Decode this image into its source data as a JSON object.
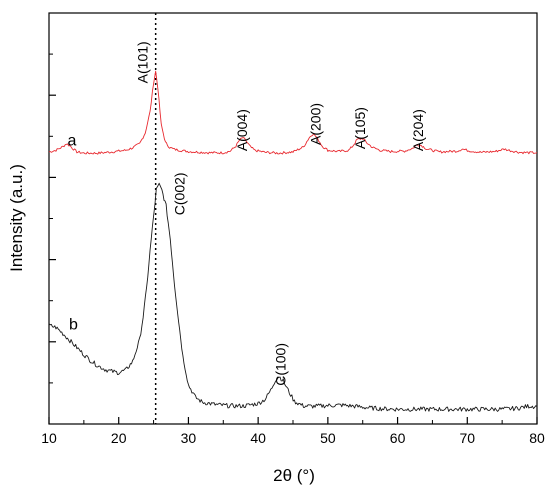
{
  "chart_data": {
    "type": "line",
    "xlabel": "2θ (°)",
    "ylabel": "Intensity (a.u.)",
    "xlim": [
      10,
      80
    ],
    "xticks": [
      10,
      20,
      30,
      40,
      50,
      60,
      70,
      80
    ],
    "ylim": [
      0,
      100
    ],
    "y_tick_labels_shown": false,
    "grid": false,
    "reference_line": {
      "x": 25.3,
      "style": "dotted"
    },
    "series": [
      {
        "name": "a",
        "color": "#e8292f",
        "x": [
          10,
          11,
          12,
          12.5,
          13,
          13.5,
          14,
          15,
          17,
          19,
          21,
          22,
          23,
          23.8,
          24.5,
          25,
          25.3,
          25.6,
          26.1,
          26.7,
          27.3,
          28,
          30,
          33,
          35,
          36,
          36.8,
          37.3,
          37.8,
          38.3,
          38.9,
          39.5,
          41,
          43,
          45,
          46.5,
          47.3,
          47.9,
          48.5,
          49.2,
          50,
          51.5,
          53,
          53.6,
          54.2,
          55,
          55.6,
          56.4,
          57.5,
          59,
          61,
          62.2,
          62.8,
          63.4,
          64.2,
          66,
          68.5,
          69.3,
          70.2,
          72,
          74,
          75.3,
          76.2,
          77.5,
          79,
          80
        ],
        "y": [
          66.2,
          66.6,
          67.5,
          68.2,
          67.7,
          66.9,
          66.2,
          65.9,
          65.9,
          66.2,
          66.6,
          67.2,
          68.2,
          70.8,
          76,
          83,
          85.8,
          82,
          72.8,
          68.5,
          67.3,
          66.8,
          66.3,
          66,
          66,
          66.4,
          67.6,
          69,
          69.7,
          68.8,
          67.4,
          66.6,
          66.1,
          65.9,
          66.2,
          67.4,
          69.6,
          70.7,
          69.5,
          67.6,
          66.6,
          66.3,
          66.6,
          67.7,
          69.2,
          69.5,
          68.4,
          67.3,
          66.6,
          66.3,
          66.4,
          67.1,
          68,
          67.8,
          66.9,
          66.2,
          66.4,
          66.9,
          66.5,
          66.1,
          66.3,
          66.9,
          66.5,
          66.1,
          66,
          66
        ]
      },
      {
        "name": "b",
        "color": "#1a1a1a",
        "x": [
          10,
          11,
          12,
          13,
          14,
          15,
          16,
          17,
          18,
          19,
          20,
          21,
          22,
          23,
          23.5,
          24,
          24.5,
          25,
          25.4,
          25.8,
          26.2,
          26.8,
          27.4,
          28,
          28.6,
          29.2,
          30,
          31,
          32,
          34,
          36,
          38,
          40,
          41,
          41.8,
          42.5,
          43,
          43.6,
          44.3,
          45.2,
          46.5,
          48,
          50,
          52,
          54,
          56,
          58,
          60,
          65,
          70,
          75,
          77,
          79,
          80
        ],
        "y": [
          24,
          23.5,
          22,
          20.3,
          18.6,
          16.9,
          15.4,
          14.2,
          13.3,
          12.8,
          12.5,
          13.1,
          15.2,
          20.5,
          26,
          33,
          42.2,
          50.5,
          57,
          58.2,
          56.8,
          53,
          45,
          34,
          25,
          16.5,
          9.5,
          6.5,
          5.3,
          4.7,
          4.4,
          4.4,
          5,
          6,
          8.2,
          10.8,
          11.6,
          10.5,
          8.2,
          5.5,
          4.4,
          4.3,
          4.5,
          4.6,
          4.3,
          3.9,
          3.7,
          3.6,
          3.6,
          3.6,
          3.6,
          3.8,
          4.4,
          4.2
        ]
      }
    ],
    "annotations": [
      {
        "text": "A(101)",
        "x": 23.4,
        "y": 88
      },
      {
        "text": "A(004)",
        "x": 37.7,
        "y": 71.5
      },
      {
        "text": "A(200)",
        "x": 48.2,
        "y": 73
      },
      {
        "text": "A(105)",
        "x": 54.6,
        "y": 72
      },
      {
        "text": "A(204)",
        "x": 62.9,
        "y": 71.5
      },
      {
        "text": "C(002)",
        "x": 28.7,
        "y": 56
      },
      {
        "text": "C(100)",
        "x": 43.2,
        "y": 14.5
      },
      {
        "text": "a",
        "x": 13.3,
        "y": 69.2,
        "kind": "curve"
      },
      {
        "text": "b",
        "x": 13.5,
        "y": 24.5,
        "kind": "curve"
      }
    ]
  }
}
